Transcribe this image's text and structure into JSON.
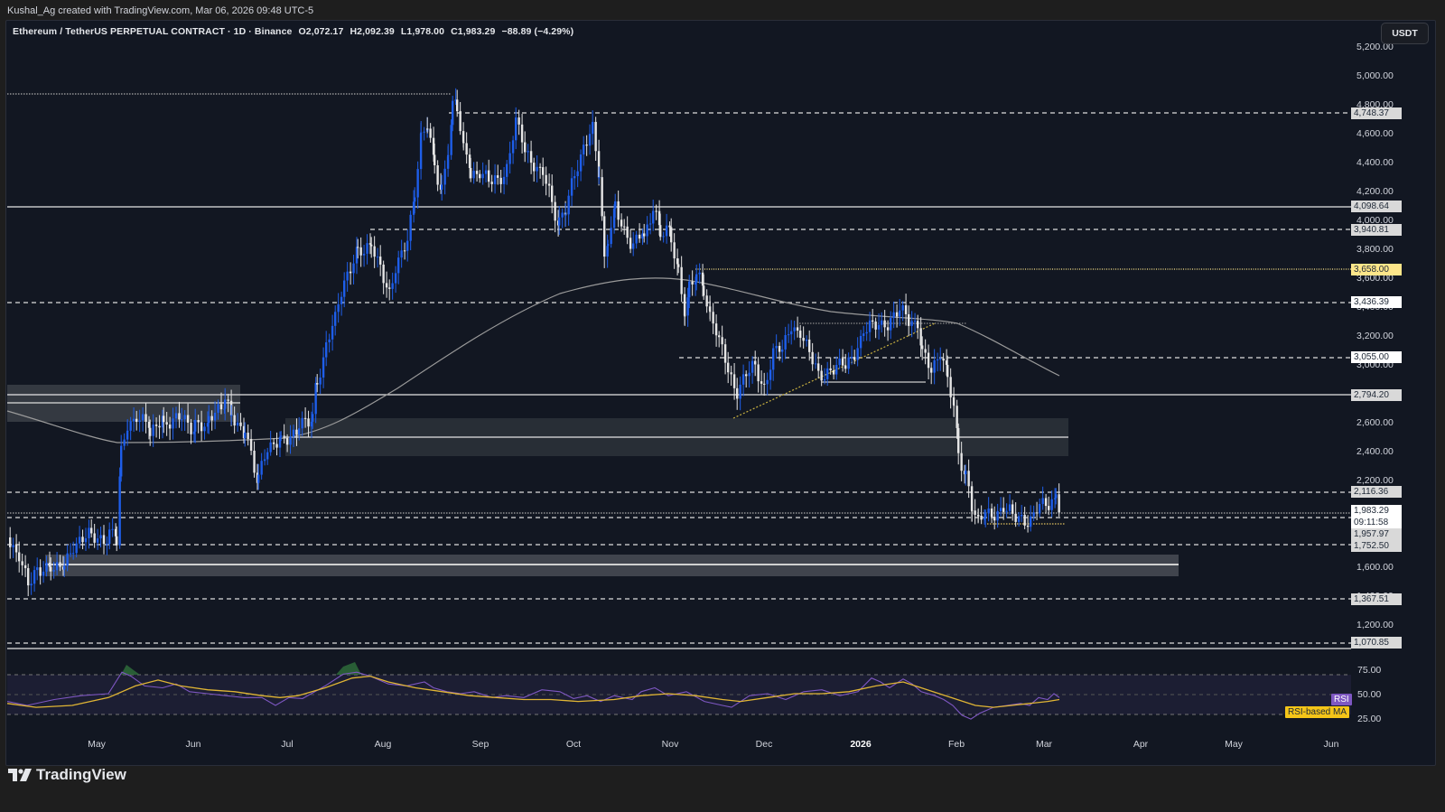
{
  "credit": "Kushal_Ag created with TradingView.com, Mar 06, 2026 09:48 UTC-5",
  "legend": {
    "symbol": "Ethereum / TetherUS PERPETUAL CONTRACT · 1D · Binance",
    "open": "O2,072.17",
    "high": "H2,092.39",
    "low": "L1,978.00",
    "close": "C1,983.29",
    "change": "−88.89 (−4.29%)"
  },
  "currency_button": "USDT",
  "footer_brand": "TradingView",
  "colors": {
    "background": "#121722",
    "bull_candle": "#1e5eea",
    "bear_candle": "#e6e6e6",
    "rsi_line": "#7e57c2",
    "rsi_ma_line": "#e0b534",
    "highlight_level": "#fde68a"
  },
  "price_axis": {
    "ticks": [
      "5,200.00",
      "5,000.00",
      "4,800.00",
      "4,600.00",
      "4,400.00",
      "4,200.00",
      "4,000.00",
      "3,800.00",
      "3,600.00",
      "3,400.00",
      "3,200.00",
      "3,000.00",
      "2,600.00",
      "2,400.00",
      "2,200.00",
      "1,600.00",
      "1,400.00",
      "1,200.00"
    ],
    "level_tags": [
      {
        "label": "4,748.37",
        "style": "grey"
      },
      {
        "label": "4,098.64",
        "style": "grey"
      },
      {
        "label": "3,940.81",
        "style": "grey"
      },
      {
        "label": "3,658.00",
        "style": "yellow"
      },
      {
        "label": "3,436.39",
        "style": "white"
      },
      {
        "label": "3,055.00",
        "style": "white"
      },
      {
        "label": "2,794.20",
        "style": "grey"
      },
      {
        "label": "2,116.36",
        "style": "grey"
      },
      {
        "label": "1,983.29",
        "style": "white"
      },
      {
        "label": "09:11:58",
        "style": "white"
      },
      {
        "label": "1,957.97",
        "style": "grey"
      },
      {
        "label": "1,752.50",
        "style": "grey"
      },
      {
        "label": "1,367.51",
        "style": "grey"
      },
      {
        "label": "1,070.85",
        "style": "grey"
      }
    ]
  },
  "rsi_axis": {
    "ticks": [
      "75.00",
      "50.00",
      "25.00"
    ],
    "rsi_tag": "RSI",
    "rsi_ma_tag": "RSI-based MA"
  },
  "time_axis": {
    "labels": [
      "May",
      "Jun",
      "Jul",
      "Aug",
      "Sep",
      "Oct",
      "Nov",
      "Dec",
      "2026",
      "Feb",
      "Mar",
      "Apr",
      "May",
      "Jun"
    ]
  },
  "chart_data": [
    {
      "type": "candlestick",
      "title": "Ethereum / TetherUS PERPETUAL CONTRACT · 1D · Binance",
      "xlabel": "",
      "ylabel": "USDT",
      "ylim": [
        1000,
        5300
      ],
      "x": [
        "Apr 2025",
        "May",
        "Jun",
        "Jul",
        "Aug",
        "Sep",
        "Oct",
        "Nov",
        "Dec",
        "Jan 2026",
        "Feb",
        "Mar 6"
      ],
      "approx_close": [
        1800,
        1850,
        2500,
        2500,
        3800,
        4350,
        4300,
        3800,
        3000,
        3000,
        2000,
        1983.29
      ],
      "last_bar": {
        "open": 2072.17,
        "high": 2092.39,
        "low": 1978.0,
        "close": 1983.29,
        "change": -88.89,
        "change_pct": -4.29
      },
      "all_time_high_marker": 4950,
      "horizontal_levels": [
        4748.37,
        4098.64,
        3940.81,
        3658.0,
        3436.39,
        3055.0,
        2794.2,
        2116.36,
        1957.97,
        1752.5,
        1367.51,
        1070.85
      ],
      "zones": [
        {
          "from": 2620,
          "to": 2870,
          "x_range": [
            "Apr",
            "Jun"
          ]
        },
        {
          "from": 2380,
          "to": 2620,
          "x_range": [
            "Jul",
            "Feb"
          ]
        },
        {
          "from": 1560,
          "to": 1680,
          "x_range": [
            "Apr",
            "Apr 2026"
          ]
        }
      ],
      "moving_average": {
        "name": "200D MA",
        "approx_values": [
          2700,
          2500,
          2480,
          2500,
          2800,
          3300,
          3600,
          3450,
          3300,
          3100,
          2900
        ]
      },
      "grid": false
    },
    {
      "type": "line",
      "title": "RSI",
      "ylim": [
        15,
        85
      ],
      "bands": [
        25,
        50,
        75
      ],
      "series": [
        {
          "name": "RSI",
          "approx_values": [
            40,
            40,
            70,
            45,
            50,
            80,
            55,
            45,
            52,
            68,
            40,
            23,
            42,
            48
          ]
        },
        {
          "name": "RSI-based MA",
          "approx_values": [
            38,
            36,
            55,
            62,
            50,
            72,
            58,
            48,
            45,
            60,
            55,
            30,
            35,
            40
          ]
        }
      ]
    }
  ]
}
